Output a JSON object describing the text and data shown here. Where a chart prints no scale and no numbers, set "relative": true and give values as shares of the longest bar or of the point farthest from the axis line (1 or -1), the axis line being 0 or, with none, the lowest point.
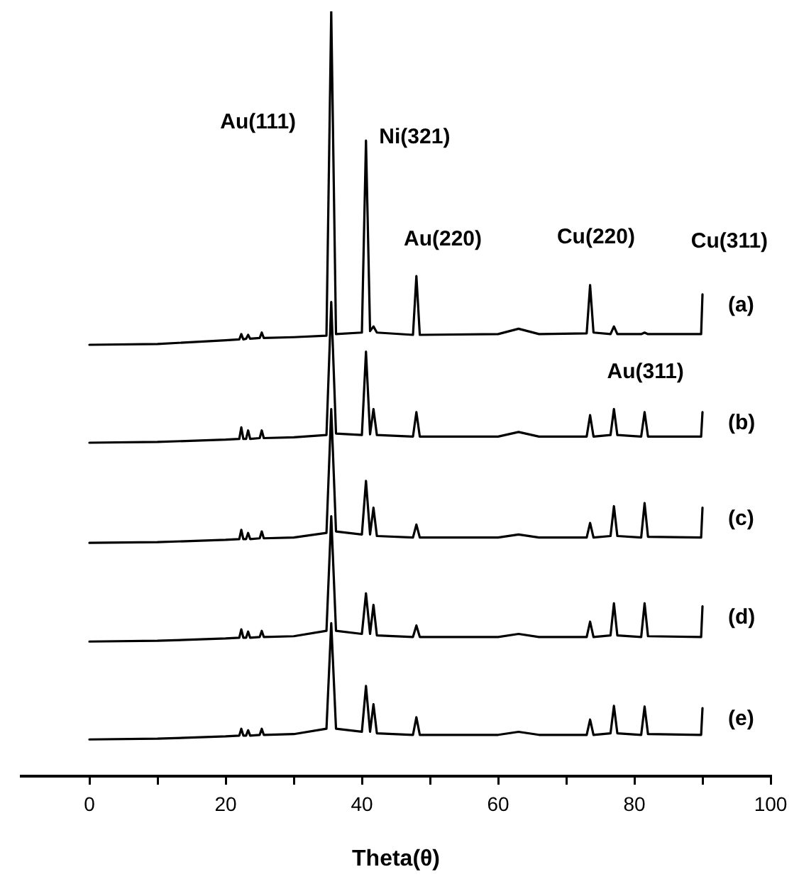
{
  "chart_data": {
    "type": "line",
    "relative": true,
    "xlabel": "Theta(θ)",
    "xlim": [
      -10,
      100
    ],
    "xticks": [
      0,
      {
        "value": 10,
        "label": null
      },
      20,
      {
        "value": 30,
        "label": null
      },
      40,
      {
        "value": 50,
        "label": null
      },
      60,
      {
        "value": 70,
        "label": null
      },
      80,
      {
        "value": 90,
        "label": null
      },
      100
    ],
    "grid": false,
    "legend": false,
    "marker": "none",
    "line_style": "solid",
    "x": [
      0,
      10,
      20,
      22,
      22.3,
      22.6,
      23,
      23.3,
      23.6,
      25,
      25.3,
      25.6,
      30,
      34.8,
      35.5,
      36.2,
      40,
      40.6,
      41.2,
      41.7,
      42.2,
      47.5,
      48,
      48.5,
      60,
      63,
      66,
      73,
      73.5,
      74,
      76.5,
      77,
      77.5,
      81,
      81.5,
      82,
      89.8,
      90
    ],
    "series": [
      {
        "name": "(a)",
        "color": "#000000",
        "values": [
          0.564,
          0.565,
          0.57,
          0.571,
          0.578,
          0.571,
          0.572,
          0.577,
          0.572,
          0.573,
          0.58,
          0.573,
          0.574,
          0.576,
          1.0,
          0.578,
          0.58,
          0.831,
          0.582,
          0.588,
          0.58,
          0.577,
          0.654,
          0.577,
          0.578,
          0.585,
          0.578,
          0.579,
          0.642,
          0.58,
          0.578,
          0.588,
          0.578,
          0.578,
          0.58,
          0.578,
          0.578,
          0.63
        ]
      },
      {
        "name": "(b)",
        "color": "#000000",
        "values": [
          0.436,
          0.437,
          0.44,
          0.441,
          0.456,
          0.441,
          0.441,
          0.452,
          0.441,
          0.442,
          0.452,
          0.442,
          0.443,
          0.446,
          0.62,
          0.448,
          0.446,
          0.555,
          0.447,
          0.48,
          0.446,
          0.444,
          0.476,
          0.444,
          0.444,
          0.45,
          0.444,
          0.444,
          0.472,
          0.444,
          0.446,
          0.48,
          0.446,
          0.444,
          0.476,
          0.444,
          0.444,
          0.476
        ]
      },
      {
        "name": "(c)",
        "color": "#000000",
        "values": [
          0.305,
          0.306,
          0.309,
          0.31,
          0.322,
          0.31,
          0.31,
          0.318,
          0.31,
          0.311,
          0.32,
          0.311,
          0.312,
          0.318,
          0.48,
          0.32,
          0.316,
          0.386,
          0.316,
          0.351,
          0.314,
          0.312,
          0.329,
          0.312,
          0.312,
          0.316,
          0.312,
          0.312,
          0.331,
          0.312,
          0.314,
          0.353,
          0.314,
          0.312,
          0.357,
          0.313,
          0.312,
          0.351
        ]
      },
      {
        "name": "(d)",
        "color": "#000000",
        "values": [
          0.176,
          0.177,
          0.18,
          0.181,
          0.192,
          0.181,
          0.181,
          0.189,
          0.181,
          0.182,
          0.19,
          0.182,
          0.183,
          0.19,
          0.34,
          0.19,
          0.186,
          0.239,
          0.186,
          0.224,
          0.184,
          0.182,
          0.197,
          0.182,
          0.182,
          0.186,
          0.182,
          0.182,
          0.202,
          0.182,
          0.184,
          0.226,
          0.184,
          0.182,
          0.226,
          0.183,
          0.182,
          0.222
        ]
      },
      {
        "name": "(e)",
        "color": "#000000",
        "values": [
          0.048,
          0.049,
          0.052,
          0.053,
          0.062,
          0.053,
          0.053,
          0.06,
          0.053,
          0.054,
          0.062,
          0.054,
          0.055,
          0.062,
          0.2,
          0.062,
          0.058,
          0.118,
          0.058,
          0.094,
          0.056,
          0.054,
          0.077,
          0.054,
          0.054,
          0.058,
          0.054,
          0.054,
          0.074,
          0.054,
          0.056,
          0.092,
          0.056,
          0.054,
          0.091,
          0.055,
          0.054,
          0.089
        ]
      }
    ],
    "annotations": [
      "Au(111)",
      "Ni(321)",
      "Au(220)",
      "Cu(220)",
      "Cu(311)",
      "Au(311)"
    ]
  }
}
